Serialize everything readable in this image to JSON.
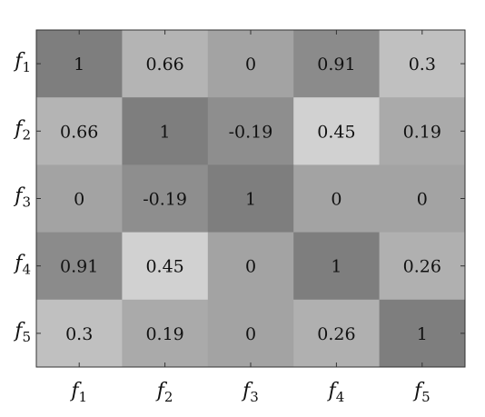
{
  "chart_data": {
    "type": "heatmap",
    "title": "",
    "xlabel": "",
    "ylabel": "",
    "categories_x": [
      {
        "base": "f",
        "sub": "1"
      },
      {
        "base": "f",
        "sub": "2"
      },
      {
        "base": "f",
        "sub": "3"
      },
      {
        "base": "f",
        "sub": "4"
      },
      {
        "base": "f",
        "sub": "5"
      }
    ],
    "categories_y": [
      {
        "base": "f",
        "sub": "1"
      },
      {
        "base": "f",
        "sub": "2"
      },
      {
        "base": "f",
        "sub": "3"
      },
      {
        "base": "f",
        "sub": "4"
      },
      {
        "base": "f",
        "sub": "5"
      }
    ],
    "values": [
      [
        1,
        0.66,
        0,
        0.91,
        0.3
      ],
      [
        0.66,
        1,
        -0.19,
        0.45,
        0.19
      ],
      [
        0,
        -0.19,
        1,
        0,
        0
      ],
      [
        0.91,
        0.45,
        0,
        1,
        0.26
      ],
      [
        0.3,
        0.19,
        0,
        0.26,
        1
      ]
    ],
    "value_labels": [
      [
        "1",
        "0.66",
        "0",
        "0.91",
        "0.3"
      ],
      [
        "0.66",
        "1",
        "-0.19",
        "0.45",
        "0.19"
      ],
      [
        "0",
        "-0.19",
        "1",
        "0",
        "0"
      ],
      [
        "0.91",
        "0.45",
        "0",
        "1",
        "0.26"
      ],
      [
        "0.3",
        "0.19",
        "0",
        "0.26",
        "1"
      ]
    ],
    "cell_colors": [
      [
        "#7e7e7e",
        "#b4b4b4",
        "#a3a3a3",
        "#8b8b8b",
        "#c0c0c0"
      ],
      [
        "#b4b4b4",
        "#7e7e7e",
        "#8e8e8e",
        "#d1d1d1",
        "#aaaaaa"
      ],
      [
        "#a3a3a3",
        "#8e8e8e",
        "#7e7e7e",
        "#a3a3a3",
        "#a3a3a3"
      ],
      [
        "#8b8b8b",
        "#d1d1d1",
        "#a3a3a3",
        "#7e7e7e",
        "#b0b0b0"
      ],
      [
        "#c0c0c0",
        "#aaaaaa",
        "#a3a3a3",
        "#b0b0b0",
        "#7e7e7e"
      ]
    ],
    "legend": "none",
    "grid": false
  }
}
